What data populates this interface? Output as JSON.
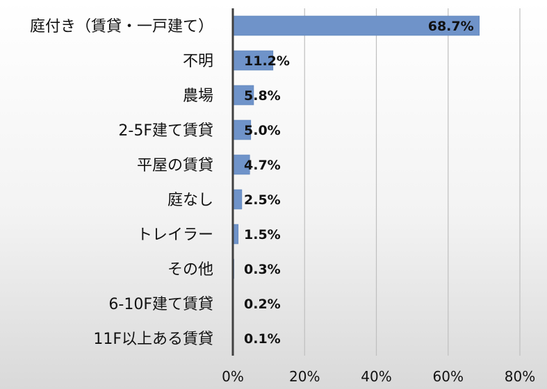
{
  "chart_data": {
    "type": "bar",
    "orientation": "horizontal",
    "categories": [
      "庭付き（賃貸・一戸建て）",
      "不明",
      "農場",
      "2-5F建て賃貸",
      "平屋の賃貸",
      "庭なし",
      "トレイラー",
      "その他",
      "6-10F建て賃貸",
      "11F以上ある賃貸"
    ],
    "values": [
      68.7,
      11.2,
      5.8,
      5.0,
      4.7,
      2.5,
      1.5,
      0.3,
      0.2,
      0.1
    ],
    "value_labels": [
      "68.7%",
      "11.2%",
      "5.8%",
      "5.0%",
      "4.7%",
      "2.5%",
      "1.5%",
      "0.3%",
      "0.2%",
      "0.1%"
    ],
    "xlim": [
      0,
      80
    ],
    "xticks": [
      0,
      20,
      40,
      60,
      80
    ],
    "xtick_labels": [
      "0%",
      "20%",
      "40%",
      "60%",
      "80%"
    ],
    "grid": "vertical",
    "legend": "none",
    "title": "",
    "xlabel": "",
    "ylabel": "",
    "colors": {
      "bar": "#6f93c9",
      "bar_stroke": "#5b80b8",
      "grid": "#bfbfbf",
      "axis": "#404040",
      "text": "#111111"
    }
  }
}
